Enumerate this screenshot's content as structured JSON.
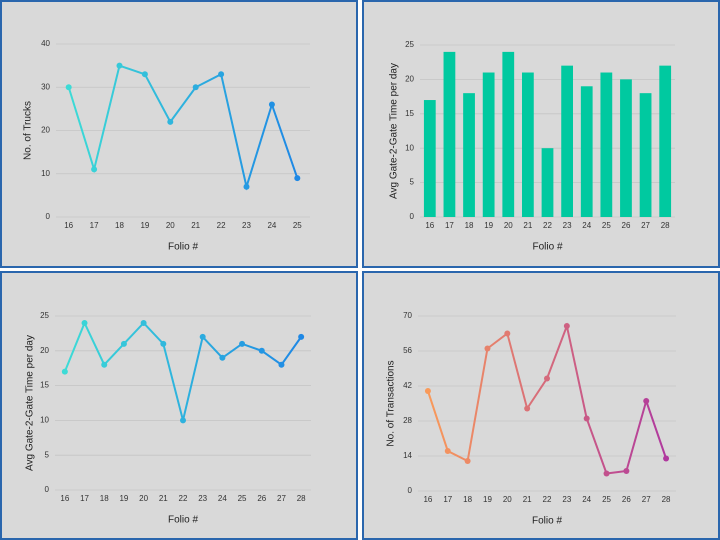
{
  "chart_data": [
    {
      "type": "line",
      "x_label": "Folio #",
      "y_label": "No. of Trucks",
      "categories": [
        "16",
        "17",
        "18",
        "19",
        "20",
        "21",
        "22",
        "23",
        "24",
        "25"
      ],
      "series": [
        {
          "colors": [
            "#3ddbd6",
            "#1e88e5"
          ],
          "values": [
            30,
            11,
            35,
            33,
            22,
            30,
            33,
            7,
            26,
            9
          ]
        }
      ],
      "ylim": [
        0,
        40
      ],
      "yticks": [
        0,
        10,
        20,
        30,
        40
      ],
      "grid": true
    },
    {
      "type": "bar",
      "x_label": "Folio #",
      "y_label": "Avg Gate-2-Gate Time per day",
      "categories": [
        "16",
        "17",
        "18",
        "19",
        "20",
        "21",
        "22",
        "23",
        "24",
        "25",
        "26",
        "27",
        "28"
      ],
      "series": [
        {
          "color": "#00c9a0",
          "values": [
            17,
            24,
            18,
            21,
            24,
            21,
            10,
            22,
            19,
            21,
            20,
            18,
            22
          ]
        }
      ],
      "ylim": [
        0,
        25
      ],
      "yticks": [
        0,
        5,
        10,
        15,
        20,
        25
      ],
      "grid": true
    },
    {
      "type": "line",
      "x_label": "Folio #",
      "y_label": "Avg Gate-2-Gate Time per day",
      "categories": [
        "16",
        "17",
        "18",
        "19",
        "20",
        "21",
        "22",
        "23",
        "24",
        "25",
        "26",
        "27",
        "28"
      ],
      "series": [
        {
          "colors": [
            "#3ddbd6",
            "#1e88e5"
          ],
          "values": [
            17,
            24,
            18,
            21,
            24,
            21,
            10,
            22,
            19,
            21,
            20,
            18,
            22
          ]
        }
      ],
      "ylim": [
        0,
        25
      ],
      "yticks": [
        0,
        5,
        10,
        15,
        20,
        25
      ],
      "grid": true
    },
    {
      "type": "line",
      "x_label": "Folio #",
      "y_label": "No. of Transactions",
      "categories": [
        "16",
        "17",
        "18",
        "19",
        "20",
        "21",
        "22",
        "23",
        "24",
        "25",
        "26",
        "27",
        "28"
      ],
      "series": [
        {
          "colors": [
            "#f99a5a",
            "#b0399e"
          ],
          "values": [
            40,
            16,
            12,
            57,
            63,
            33,
            45,
            66,
            29,
            7,
            8,
            36,
            13
          ]
        }
      ],
      "ylim": [
        0,
        70
      ],
      "yticks": [
        0,
        14,
        28,
        42,
        56,
        70
      ],
      "grid": true
    }
  ]
}
